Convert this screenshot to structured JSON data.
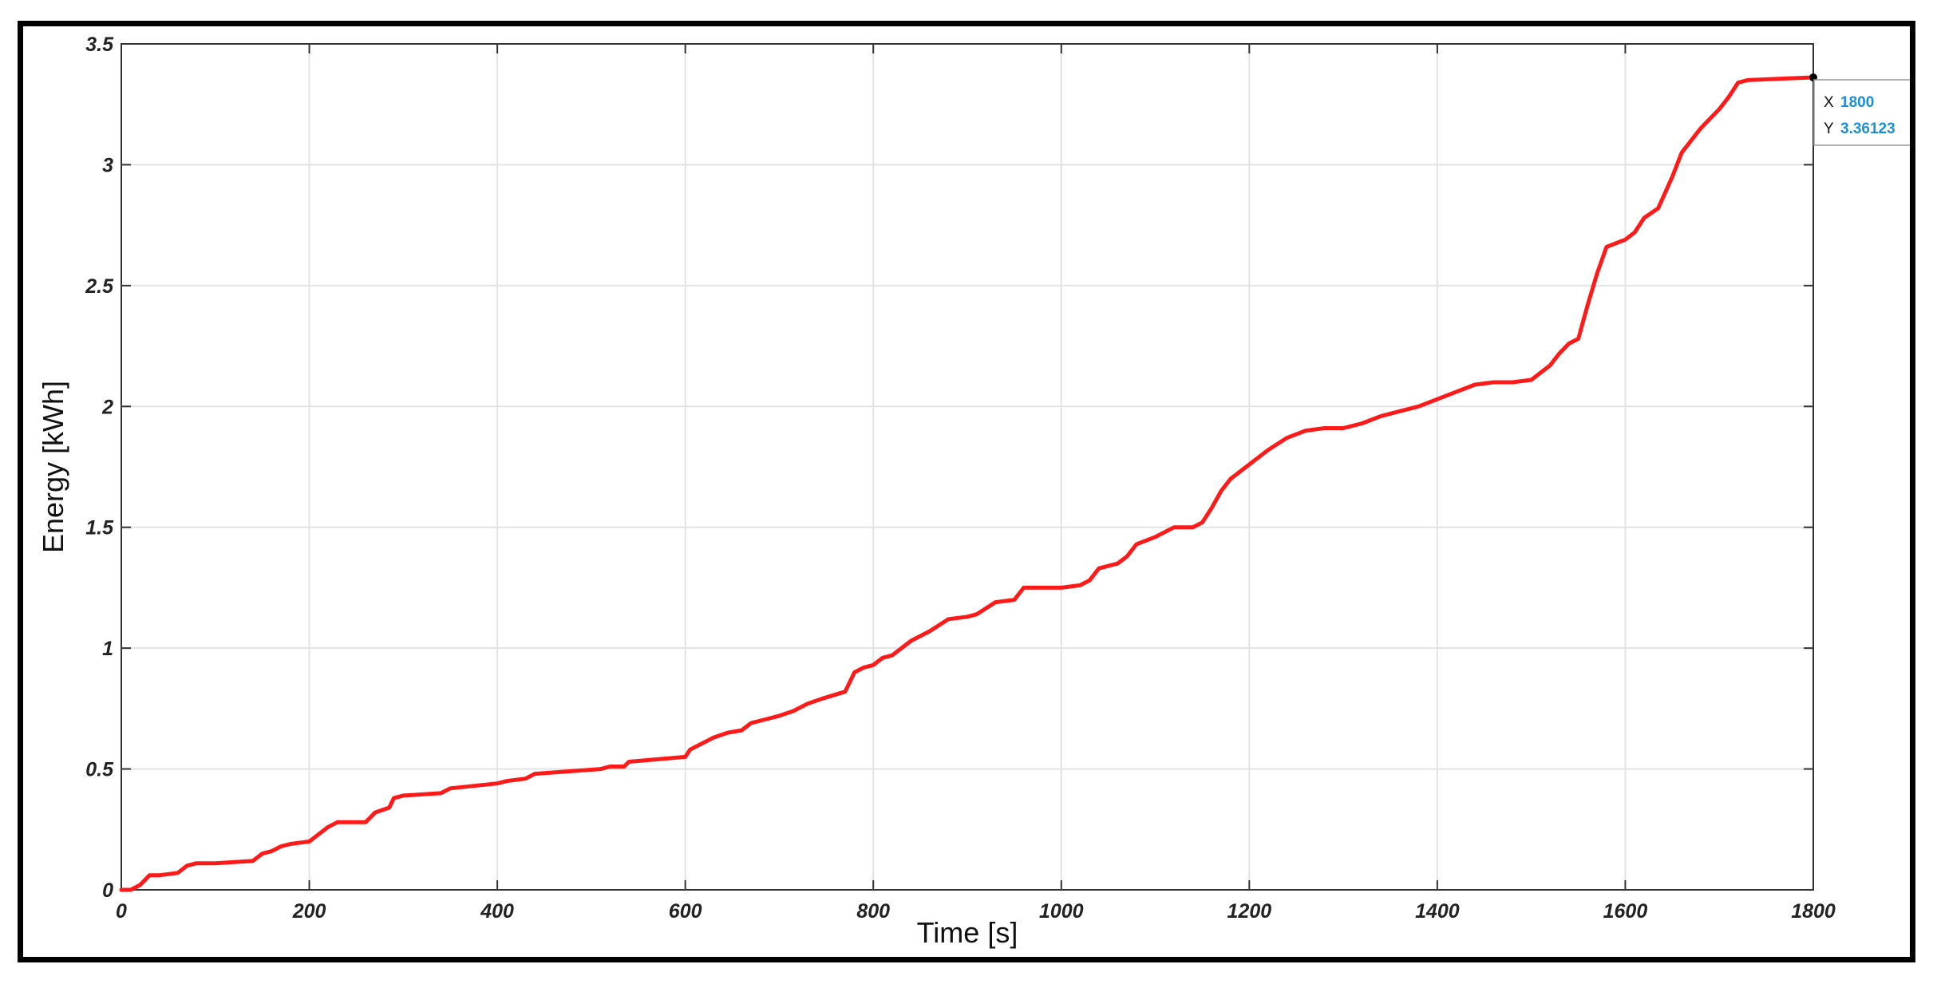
{
  "chart_data": {
    "type": "line",
    "title": "",
    "xlabel": "Time [s]",
    "ylabel": "Energy [kWh]",
    "xlim": [
      0,
      1800
    ],
    "ylim": [
      0,
      3.5
    ],
    "x_ticks": [
      "0",
      "200",
      "400",
      "600",
      "800",
      "1000",
      "1200",
      "1400",
      "1600",
      "1800"
    ],
    "y_ticks": [
      "0",
      "0.5",
      "1",
      "1.5",
      "2",
      "2.5",
      "3",
      "3.5"
    ],
    "grid": true,
    "line_color": "#ff1a1a",
    "series": [
      {
        "x": [
          0,
          10,
          20,
          30,
          40,
          60,
          70,
          80,
          100,
          140,
          150,
          160,
          170,
          180,
          200,
          210,
          220,
          230,
          260,
          270,
          285,
          290,
          300,
          340,
          350,
          400,
          410,
          430,
          440,
          510,
          520,
          535,
          540,
          600,
          605,
          615,
          630,
          645,
          660,
          670,
          690,
          700,
          715,
          730,
          745,
          770,
          780,
          790,
          800,
          810,
          820,
          840,
          860,
          880,
          900,
          910,
          930,
          950,
          960,
          980,
          1000,
          1020,
          1030,
          1040,
          1060,
          1070,
          1080,
          1100,
          1120,
          1140,
          1150,
          1160,
          1170,
          1180,
          1200,
          1220,
          1240,
          1260,
          1280,
          1300,
          1320,
          1340,
          1360,
          1380,
          1400,
          1420,
          1440,
          1460,
          1480,
          1500,
          1520,
          1530,
          1540,
          1550,
          1560,
          1570,
          1580,
          1600,
          1610,
          1620,
          1635,
          1650,
          1660,
          1680,
          1700,
          1710,
          1720,
          1730,
          1760,
          1800
        ],
        "y": [
          0,
          0,
          0.02,
          0.06,
          0.06,
          0.07,
          0.1,
          0.11,
          0.11,
          0.12,
          0.15,
          0.16,
          0.18,
          0.19,
          0.2,
          0.23,
          0.26,
          0.28,
          0.28,
          0.32,
          0.34,
          0.38,
          0.39,
          0.4,
          0.42,
          0.44,
          0.45,
          0.46,
          0.48,
          0.5,
          0.51,
          0.51,
          0.53,
          0.55,
          0.58,
          0.6,
          0.63,
          0.65,
          0.66,
          0.69,
          0.71,
          0.72,
          0.74,
          0.77,
          0.79,
          0.82,
          0.9,
          0.92,
          0.93,
          0.96,
          0.97,
          1.03,
          1.07,
          1.12,
          1.13,
          1.14,
          1.19,
          1.2,
          1.25,
          1.25,
          1.25,
          1.26,
          1.28,
          1.33,
          1.35,
          1.38,
          1.43,
          1.46,
          1.5,
          1.5,
          1.52,
          1.58,
          1.65,
          1.7,
          1.76,
          1.82,
          1.87,
          1.9,
          1.91,
          1.91,
          1.93,
          1.96,
          1.98,
          2.0,
          2.03,
          2.06,
          2.09,
          2.1,
          2.1,
          2.11,
          2.17,
          2.22,
          2.26,
          2.28,
          2.42,
          2.55,
          2.66,
          2.69,
          2.72,
          2.78,
          2.82,
          2.95,
          3.05,
          3.15,
          3.23,
          3.28,
          3.34,
          3.35,
          3.355,
          3.36123
        ]
      }
    ]
  },
  "datatip": {
    "x_label": "X",
    "x_value": "1800",
    "y_label": "Y",
    "y_value": "3.36123"
  }
}
